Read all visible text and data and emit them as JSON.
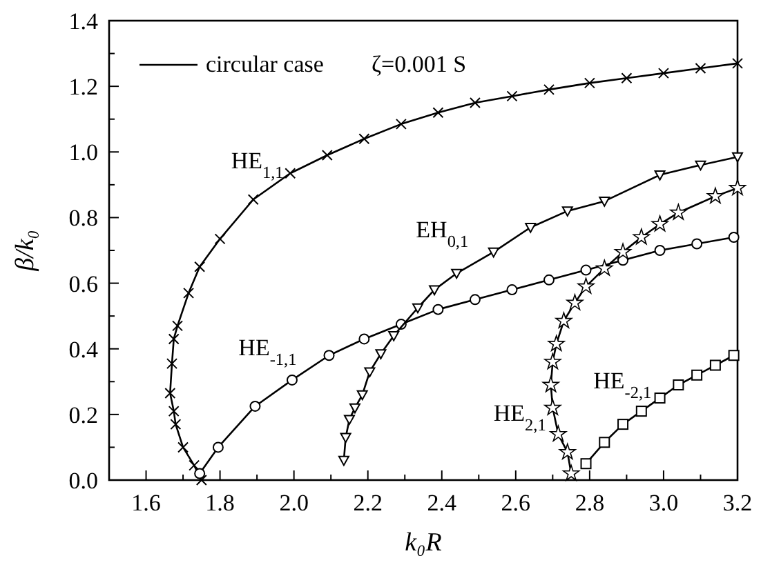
{
  "chart_data": {
    "type": "line",
    "xlabel": "k₀R",
    "ylabel": "β/k₀",
    "legend_title": "circular case",
    "annotations": [
      "ζ=0.001 S"
    ],
    "xlim": [
      1.5,
      3.2
    ],
    "ylim": [
      0,
      1.4
    ],
    "xticks": [
      {
        "value": 1.5,
        "label": null
      },
      {
        "value": 1.6,
        "label": "1.6"
      },
      {
        "value": 1.7,
        "label": null
      },
      {
        "value": 1.8,
        "label": "1.8"
      },
      {
        "value": 1.9,
        "label": null
      },
      {
        "value": 2.0,
        "label": "2.0"
      },
      {
        "value": 2.1,
        "label": null
      },
      {
        "value": 2.2,
        "label": "2.2"
      },
      {
        "value": 2.3,
        "label": null
      },
      {
        "value": 2.4,
        "label": "2.4"
      },
      {
        "value": 2.5,
        "label": null
      },
      {
        "value": 2.6,
        "label": "2.6"
      },
      {
        "value": 2.7,
        "label": null
      },
      {
        "value": 2.8,
        "label": "2.8"
      },
      {
        "value": 2.9,
        "label": null
      },
      {
        "value": 3.0,
        "label": "3.0"
      },
      {
        "value": 3.1,
        "label": null
      },
      {
        "value": 3.2,
        "label": "3.2"
      }
    ],
    "yticks": [
      {
        "value": 0,
        "label": "0.0"
      },
      {
        "value": 0.1,
        "label": null
      },
      {
        "value": 0.2,
        "label": "0.2"
      },
      {
        "value": 0.3,
        "label": null
      },
      {
        "value": 0.4,
        "label": "0.4"
      },
      {
        "value": 0.5,
        "label": null
      },
      {
        "value": 0.6,
        "label": "0.6"
      },
      {
        "value": 0.7,
        "label": null
      },
      {
        "value": 0.8,
        "label": "0.8"
      },
      {
        "value": 0.9,
        "label": null
      },
      {
        "value": 1.0,
        "label": "1.0"
      },
      {
        "value": 1.1,
        "label": null
      },
      {
        "value": 1.2,
        "label": "1.2"
      },
      {
        "value": 1.3,
        "label": null
      },
      {
        "value": 1.4,
        "label": "1.4"
      }
    ],
    "series": [
      {
        "name": "HE$_{1,1}$",
        "color": "#000000",
        "marker": "cross",
        "x": [
          1.75,
          1.73,
          1.7,
          1.68,
          1.675,
          1.665,
          1.67,
          1.675,
          1.685,
          1.715,
          1.745,
          1.8,
          1.89,
          1.99,
          2.09,
          2.19,
          2.29,
          2.39,
          2.49,
          2.59,
          2.69,
          2.8,
          2.9,
          3.0,
          3.1,
          3.2
        ],
        "values": [
          0.0,
          0.045,
          0.1,
          0.17,
          0.21,
          0.265,
          0.355,
          0.43,
          0.47,
          0.57,
          0.65,
          0.735,
          0.855,
          0.935,
          0.99,
          1.04,
          1.085,
          1.12,
          1.15,
          1.17,
          1.19,
          1.21,
          1.225,
          1.24,
          1.255,
          1.27
        ]
      },
      {
        "name": "HE$_{-1,1}$",
        "color": "#000000",
        "marker": "circle",
        "x": [
          1.745,
          1.795,
          1.895,
          1.995,
          2.095,
          2.19,
          2.29,
          2.39,
          2.49,
          2.59,
          2.69,
          2.79,
          2.89,
          2.99,
          3.09,
          3.19
        ],
        "values": [
          0.02,
          0.1,
          0.225,
          0.305,
          0.38,
          0.43,
          0.475,
          0.52,
          0.55,
          0.58,
          0.61,
          0.64,
          0.67,
          0.7,
          0.72,
          0.74
        ]
      },
      {
        "name": "EH$_{0,1}$",
        "color": "#000000",
        "marker": "triangle",
        "x": [
          2.135,
          2.14,
          2.15,
          2.165,
          2.185,
          2.205,
          2.235,
          2.27,
          2.335,
          2.38,
          2.44,
          2.54,
          2.64,
          2.74,
          2.84,
          2.99,
          3.1,
          3.2
        ],
        "values": [
          0.06,
          0.13,
          0.185,
          0.22,
          0.26,
          0.33,
          0.385,
          0.44,
          0.525,
          0.58,
          0.63,
          0.695,
          0.77,
          0.82,
          0.85,
          0.93,
          0.96,
          0.985
        ]
      },
      {
        "name": "HE$_{2,1}$",
        "color": "#000000",
        "marker": "star",
        "x": [
          2.75,
          2.74,
          2.715,
          2.7,
          2.695,
          2.7,
          2.71,
          2.73,
          2.76,
          2.79,
          2.84,
          2.89,
          2.94,
          2.99,
          3.04,
          3.14,
          3.2
        ],
        "values": [
          0.02,
          0.085,
          0.14,
          0.22,
          0.29,
          0.36,
          0.415,
          0.485,
          0.54,
          0.59,
          0.645,
          0.695,
          0.74,
          0.78,
          0.815,
          0.865,
          0.89
        ]
      },
      {
        "name": "HE$_{-2,1}$",
        "color": "#000000",
        "marker": "square",
        "x": [
          2.79,
          2.84,
          2.89,
          2.94,
          2.99,
          3.04,
          3.09,
          3.14,
          3.19
        ],
        "values": [
          0.05,
          0.115,
          0.17,
          0.21,
          0.25,
          0.29,
          0.32,
          0.35,
          0.38
        ]
      }
    ]
  }
}
